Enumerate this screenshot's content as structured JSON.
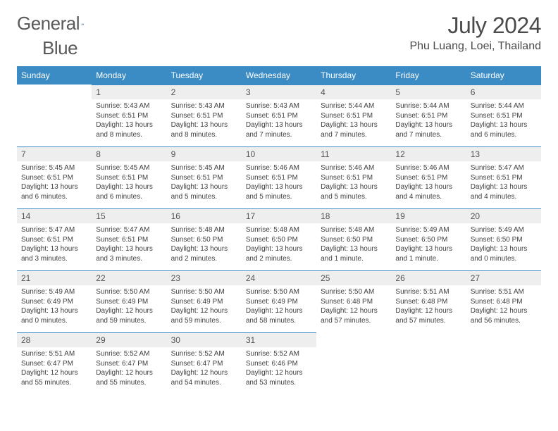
{
  "brand": {
    "name_a": "General",
    "name_b": "Blue"
  },
  "title": "July 2024",
  "location": "Phu Luang, Loei, Thailand",
  "style": {
    "header_bg": "#3b8bc4",
    "header_fg": "#ffffff",
    "daynum_bg": "#eeeeee",
    "daynum_border": "#3b8bc4",
    "body_bg": "#ffffff",
    "text_color": "#404040",
    "title_color": "#4a4a4a",
    "brand_color": "#5a5a5a",
    "logo_blue": "#2d6fa8",
    "title_fontsize": 32,
    "location_fontsize": 16,
    "header_fontsize": 12,
    "daynum_fontsize": 12,
    "body_fontsize": 10,
    "columns": 7,
    "col_width_pct": 14.28
  },
  "weekdays": [
    "Sunday",
    "Monday",
    "Tuesday",
    "Wednesday",
    "Thursday",
    "Friday",
    "Saturday"
  ],
  "weeks": [
    [
      null,
      {
        "n": "1",
        "sr": "Sunrise: 5:43 AM",
        "ss": "Sunset: 6:51 PM",
        "dl": "Daylight: 13 hours and 8 minutes."
      },
      {
        "n": "2",
        "sr": "Sunrise: 5:43 AM",
        "ss": "Sunset: 6:51 PM",
        "dl": "Daylight: 13 hours and 8 minutes."
      },
      {
        "n": "3",
        "sr": "Sunrise: 5:43 AM",
        "ss": "Sunset: 6:51 PM",
        "dl": "Daylight: 13 hours and 7 minutes."
      },
      {
        "n": "4",
        "sr": "Sunrise: 5:44 AM",
        "ss": "Sunset: 6:51 PM",
        "dl": "Daylight: 13 hours and 7 minutes."
      },
      {
        "n": "5",
        "sr": "Sunrise: 5:44 AM",
        "ss": "Sunset: 6:51 PM",
        "dl": "Daylight: 13 hours and 7 minutes."
      },
      {
        "n": "6",
        "sr": "Sunrise: 5:44 AM",
        "ss": "Sunset: 6:51 PM",
        "dl": "Daylight: 13 hours and 6 minutes."
      }
    ],
    [
      {
        "n": "7",
        "sr": "Sunrise: 5:45 AM",
        "ss": "Sunset: 6:51 PM",
        "dl": "Daylight: 13 hours and 6 minutes."
      },
      {
        "n": "8",
        "sr": "Sunrise: 5:45 AM",
        "ss": "Sunset: 6:51 PM",
        "dl": "Daylight: 13 hours and 6 minutes."
      },
      {
        "n": "9",
        "sr": "Sunrise: 5:45 AM",
        "ss": "Sunset: 6:51 PM",
        "dl": "Daylight: 13 hours and 5 minutes."
      },
      {
        "n": "10",
        "sr": "Sunrise: 5:46 AM",
        "ss": "Sunset: 6:51 PM",
        "dl": "Daylight: 13 hours and 5 minutes."
      },
      {
        "n": "11",
        "sr": "Sunrise: 5:46 AM",
        "ss": "Sunset: 6:51 PM",
        "dl": "Daylight: 13 hours and 5 minutes."
      },
      {
        "n": "12",
        "sr": "Sunrise: 5:46 AM",
        "ss": "Sunset: 6:51 PM",
        "dl": "Daylight: 13 hours and 4 minutes."
      },
      {
        "n": "13",
        "sr": "Sunrise: 5:47 AM",
        "ss": "Sunset: 6:51 PM",
        "dl": "Daylight: 13 hours and 4 minutes."
      }
    ],
    [
      {
        "n": "14",
        "sr": "Sunrise: 5:47 AM",
        "ss": "Sunset: 6:51 PM",
        "dl": "Daylight: 13 hours and 3 minutes."
      },
      {
        "n": "15",
        "sr": "Sunrise: 5:47 AM",
        "ss": "Sunset: 6:51 PM",
        "dl": "Daylight: 13 hours and 3 minutes."
      },
      {
        "n": "16",
        "sr": "Sunrise: 5:48 AM",
        "ss": "Sunset: 6:50 PM",
        "dl": "Daylight: 13 hours and 2 minutes."
      },
      {
        "n": "17",
        "sr": "Sunrise: 5:48 AM",
        "ss": "Sunset: 6:50 PM",
        "dl": "Daylight: 13 hours and 2 minutes."
      },
      {
        "n": "18",
        "sr": "Sunrise: 5:48 AM",
        "ss": "Sunset: 6:50 PM",
        "dl": "Daylight: 13 hours and 1 minute."
      },
      {
        "n": "19",
        "sr": "Sunrise: 5:49 AM",
        "ss": "Sunset: 6:50 PM",
        "dl": "Daylight: 13 hours and 1 minute."
      },
      {
        "n": "20",
        "sr": "Sunrise: 5:49 AM",
        "ss": "Sunset: 6:50 PM",
        "dl": "Daylight: 13 hours and 0 minutes."
      }
    ],
    [
      {
        "n": "21",
        "sr": "Sunrise: 5:49 AM",
        "ss": "Sunset: 6:49 PM",
        "dl": "Daylight: 13 hours and 0 minutes."
      },
      {
        "n": "22",
        "sr": "Sunrise: 5:50 AM",
        "ss": "Sunset: 6:49 PM",
        "dl": "Daylight: 12 hours and 59 minutes."
      },
      {
        "n": "23",
        "sr": "Sunrise: 5:50 AM",
        "ss": "Sunset: 6:49 PM",
        "dl": "Daylight: 12 hours and 59 minutes."
      },
      {
        "n": "24",
        "sr": "Sunrise: 5:50 AM",
        "ss": "Sunset: 6:49 PM",
        "dl": "Daylight: 12 hours and 58 minutes."
      },
      {
        "n": "25",
        "sr": "Sunrise: 5:50 AM",
        "ss": "Sunset: 6:48 PM",
        "dl": "Daylight: 12 hours and 57 minutes."
      },
      {
        "n": "26",
        "sr": "Sunrise: 5:51 AM",
        "ss": "Sunset: 6:48 PM",
        "dl": "Daylight: 12 hours and 57 minutes."
      },
      {
        "n": "27",
        "sr": "Sunrise: 5:51 AM",
        "ss": "Sunset: 6:48 PM",
        "dl": "Daylight: 12 hours and 56 minutes."
      }
    ],
    [
      {
        "n": "28",
        "sr": "Sunrise: 5:51 AM",
        "ss": "Sunset: 6:47 PM",
        "dl": "Daylight: 12 hours and 55 minutes."
      },
      {
        "n": "29",
        "sr": "Sunrise: 5:52 AM",
        "ss": "Sunset: 6:47 PM",
        "dl": "Daylight: 12 hours and 55 minutes."
      },
      {
        "n": "30",
        "sr": "Sunrise: 5:52 AM",
        "ss": "Sunset: 6:47 PM",
        "dl": "Daylight: 12 hours and 54 minutes."
      },
      {
        "n": "31",
        "sr": "Sunrise: 5:52 AM",
        "ss": "Sunset: 6:46 PM",
        "dl": "Daylight: 12 hours and 53 minutes."
      },
      null,
      null,
      null
    ]
  ]
}
